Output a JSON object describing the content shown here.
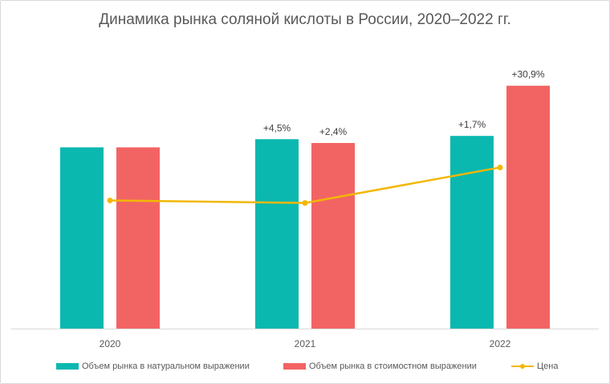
{
  "chart_data": {
    "type": "bar",
    "title": "Динамика рынка соляной кислоты в России, 2020–2022 гг.",
    "categories": [
      "2020",
      "2021",
      "2022"
    ],
    "series": [
      {
        "name": "Объем рынка в натуральном выражении",
        "type": "bar",
        "color": "#0ab8b0",
        "values": [
          100,
          104.5,
          106.3
        ],
        "labels": [
          "",
          "+4,5%",
          "+1,7%"
        ]
      },
      {
        "name": "Объем рынка в стоимостном выражении",
        "type": "bar",
        "color": "#f26463",
        "values": [
          100,
          102.4,
          134.0
        ],
        "labels": [
          "",
          "+2,4%",
          "+30,9%"
        ]
      },
      {
        "name": "Цена",
        "type": "line",
        "color": "#f2b705",
        "values": [
          100,
          98.0,
          126.0
        ]
      }
    ],
    "bar_axis_range": [
      0,
      168
    ],
    "line_axis_range": [
      -1,
      239
    ],
    "grid": false,
    "legend_position": "bottom"
  }
}
